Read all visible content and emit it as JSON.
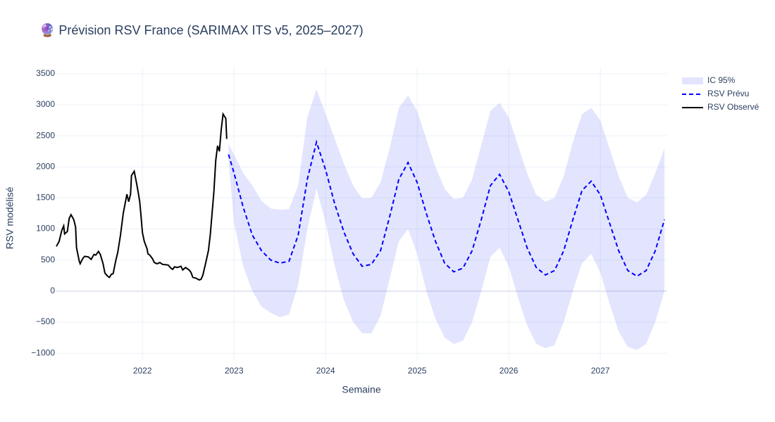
{
  "chart_data": {
    "type": "line",
    "title": "🔮 Prévision RSV France (SARIMAX ITS v5, 2025–2027)",
    "x_label": "Semaine",
    "y_label": "RSV modélisé",
    "xlim": [
      2021.06,
      2027.73
    ],
    "xticks": [
      2022,
      2023,
      2024,
      2025,
      2026,
      2027
    ],
    "ylim": [
      -1100,
      3600
    ],
    "yticks": [
      {
        "value": -1000,
        "label": "−1000"
      },
      {
        "value": -500,
        "label": "−500"
      },
      0,
      500,
      1000,
      1500,
      2000,
      2500,
      3000,
      3500
    ],
    "grid": true,
    "legend": "right",
    "series": [
      {
        "name": "IC 95%",
        "kind": "band",
        "color": "rgba(99,110,250,0.18)",
        "x": [
          2022.94,
          2023.0,
          2023.1,
          2023.2,
          2023.3,
          2023.4,
          2023.5,
          2023.6,
          2023.7,
          2023.8,
          2023.9,
          2024.0,
          2024.1,
          2024.2,
          2024.3,
          2024.4,
          2024.5,
          2024.6,
          2024.7,
          2024.8,
          2024.9,
          2025.0,
          2025.1,
          2025.2,
          2025.3,
          2025.4,
          2025.5,
          2025.6,
          2025.7,
          2025.8,
          2025.9,
          2026.0,
          2026.1,
          2026.2,
          2026.3,
          2026.4,
          2026.5,
          2026.6,
          2026.7,
          2026.8,
          2026.9,
          2027.0,
          2027.1,
          2027.2,
          2027.3,
          2027.4,
          2027.5,
          2027.6,
          2027.7
        ],
        "upper": [
          2370,
          2200,
          1900,
          1700,
          1450,
          1330,
          1310,
          1320,
          1700,
          2800,
          3250,
          2850,
          2450,
          2050,
          1700,
          1490,
          1500,
          1750,
          2300,
          2950,
          3150,
          2900,
          2450,
          2000,
          1650,
          1480,
          1500,
          1800,
          2350,
          2900,
          3030,
          2800,
          2350,
          1900,
          1550,
          1440,
          1500,
          1850,
          2400,
          2850,
          2950,
          2750,
          2300,
          1850,
          1500,
          1430,
          1550,
          1900,
          2300
        ],
        "lower": [
          2100,
          1100,
          400,
          0,
          -250,
          -350,
          -420,
          -380,
          100,
          1000,
          1650,
          1100,
          400,
          -150,
          -500,
          -680,
          -680,
          -400,
          200,
          800,
          1000,
          600,
          0,
          -450,
          -750,
          -850,
          -800,
          -500,
          0,
          550,
          700,
          400,
          -100,
          -550,
          -850,
          -920,
          -870,
          -500,
          0,
          450,
          600,
          300,
          -200,
          -650,
          -900,
          -950,
          -850,
          -500,
          0
        ]
      },
      {
        "name": "RSV Prévu",
        "kind": "line",
        "dash": true,
        "color": "#0000ff",
        "x": [
          2022.94,
          2023.0,
          2023.1,
          2023.2,
          2023.3,
          2023.4,
          2023.5,
          2023.6,
          2023.7,
          2023.8,
          2023.9,
          2024.0,
          2024.1,
          2024.2,
          2024.3,
          2024.4,
          2024.5,
          2024.6,
          2024.7,
          2024.8,
          2024.9,
          2025.0,
          2025.1,
          2025.2,
          2025.3,
          2025.4,
          2025.5,
          2025.6,
          2025.7,
          2025.8,
          2025.9,
          2026.0,
          2026.1,
          2026.2,
          2026.3,
          2026.4,
          2026.5,
          2026.6,
          2026.7,
          2026.8,
          2026.9,
          2027.0,
          2027.1,
          2027.2,
          2027.3,
          2027.4,
          2027.5,
          2027.6,
          2027.7
        ],
        "values": [
          2200,
          1900,
          1350,
          900,
          650,
          500,
          450,
          480,
          900,
          1800,
          2400,
          1950,
          1400,
          950,
          600,
          400,
          430,
          650,
          1200,
          1800,
          2070,
          1750,
          1250,
          800,
          450,
          310,
          370,
          650,
          1150,
          1700,
          1880,
          1600,
          1150,
          700,
          380,
          260,
          330,
          650,
          1150,
          1620,
          1770,
          1550,
          1100,
          650,
          330,
          240,
          330,
          650,
          1150
        ]
      },
      {
        "name": "RSV Observé",
        "kind": "line",
        "color": "#000000",
        "x": [
          2021.06,
          2021.09,
          2021.12,
          2021.14,
          2021.15,
          2021.18,
          2021.2,
          2021.22,
          2021.25,
          2021.27,
          2021.28,
          2021.31,
          2021.32,
          2021.35,
          2021.37,
          2021.41,
          2021.44,
          2021.47,
          2021.49,
          2021.52,
          2021.54,
          2021.57,
          2021.59,
          2021.62,
          2021.64,
          2021.66,
          2021.68,
          2021.71,
          2021.73,
          2021.76,
          2021.79,
          2021.82,
          2021.83,
          2021.85,
          2021.87,
          2021.88,
          2021.91,
          2021.93,
          2021.95,
          2021.97,
          2021.98,
          2022.0,
          2022.02,
          2022.05,
          2022.06,
          2022.08,
          2022.11,
          2022.13,
          2022.16,
          2022.19,
          2022.22,
          2022.28,
          2022.31,
          2022.33,
          2022.35,
          2022.38,
          2022.42,
          2022.44,
          2022.47,
          2022.51,
          2022.53,
          2022.55,
          2022.58,
          2022.62,
          2022.64,
          2022.66,
          2022.69,
          2022.72,
          2022.74,
          2022.76,
          2022.78,
          2022.8,
          2022.82,
          2022.84,
          2022.86,
          2022.88,
          2022.91,
          2022.92
        ],
        "values": [
          720,
          800,
          980,
          1050,
          920,
          960,
          1170,
          1230,
          1150,
          1030,
          700,
          480,
          440,
          530,
          560,
          550,
          510,
          590,
          580,
          640,
          590,
          440,
          290,
          240,
          220,
          270,
          280,
          500,
          620,
          900,
          1250,
          1480,
          1560,
          1440,
          1560,
          1860,
          1930,
          1780,
          1620,
          1440,
          1280,
          940,
          800,
          680,
          600,
          580,
          520,
          460,
          440,
          460,
          430,
          420,
          370,
          350,
          390,
          380,
          400,
          340,
          380,
          340,
          300,
          220,
          210,
          180,
          190,
          260,
          450,
          650,
          900,
          1250,
          1600,
          2100,
          2340,
          2250,
          2600,
          2850,
          2780,
          2450
        ]
      }
    ]
  }
}
